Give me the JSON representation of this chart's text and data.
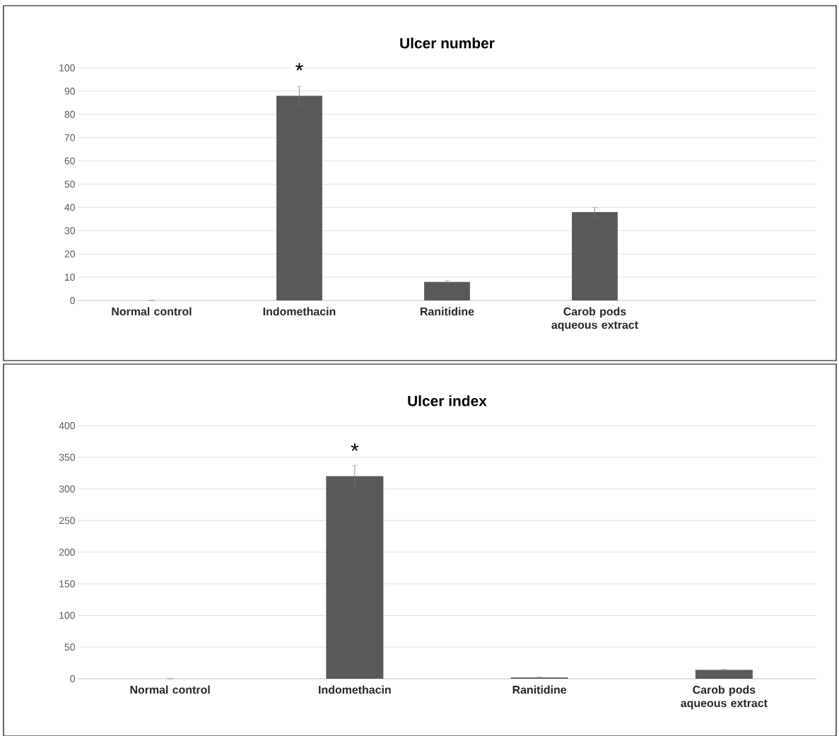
{
  "chart_data": [
    {
      "type": "bar",
      "title": "Ulcer number",
      "categories": [
        "Normal control",
        "Indomethacin",
        "Ranitidine",
        "Carob pods aqueous extract",
        null
      ],
      "values": [
        0,
        88,
        8,
        38,
        null
      ],
      "errors": [
        null,
        4,
        0.5,
        2,
        null
      ],
      "color": "#595959",
      "ylim": [
        0,
        100
      ],
      "yticks": [
        0,
        10,
        20,
        30,
        40,
        50,
        60,
        70,
        80,
        90,
        100
      ],
      "grid": "y",
      "annotations": [
        {
          "text": "*",
          "x": "Indomethacin",
          "y": 88
        }
      ]
    },
    {
      "type": "bar",
      "title": "Ulcer index",
      "categories": [
        "Normal control",
        "Indomethacin",
        "Ranitidine",
        "Carob pods aqueous extract"
      ],
      "values": [
        0,
        320,
        2,
        14
      ],
      "errors": [
        null,
        17,
        1,
        1
      ],
      "color": "#595959",
      "ylim": [
        0,
        400
      ],
      "yticks": [
        0,
        50,
        100,
        150,
        200,
        250,
        300,
        350,
        400
      ],
      "grid": "y",
      "annotations": [
        {
          "text": "*",
          "x": "Indomethacin",
          "y": 320
        }
      ]
    }
  ]
}
